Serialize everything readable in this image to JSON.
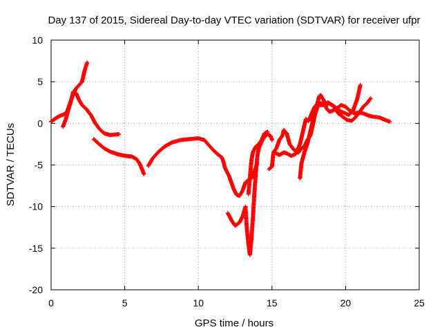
{
  "chart_data": {
    "type": "scatter",
    "title": "Day 137 of 2015, Sidereal Day-to-day VTEC variation (SDTVAR) for receiver ufpr",
    "xlabel": "GPS time / hours",
    "ylabel": "SDTVAR / TECUs",
    "xlim": [
      0,
      25
    ],
    "ylim": [
      -20,
      10
    ],
    "xticks": [
      0,
      5,
      10,
      15,
      20,
      25
    ],
    "yticks": [
      -20,
      -15,
      -10,
      -5,
      0,
      5,
      10
    ],
    "grid": true,
    "legend": "none",
    "marker": "plus",
    "color": "#ff0000",
    "series": [
      {
        "values": [
          [
            0,
            0.2
          ],
          [
            0.3,
            0.6
          ],
          [
            0.6,
            0.9
          ],
          [
            0.9,
            1.1
          ],
          [
            1.1,
            1.5
          ],
          [
            1.3,
            2.5
          ],
          [
            1.5,
            3.5
          ],
          [
            1.7,
            4.2
          ],
          [
            1.9,
            4.6
          ],
          [
            2.1,
            5.0
          ],
          [
            2.3,
            6.5
          ],
          [
            2.45,
            7.3
          ]
        ]
      },
      {
        "values": [
          [
            0.8,
            -0.4
          ],
          [
            1.0,
            0.5
          ],
          [
            1.2,
            1.8
          ],
          [
            1.4,
            3.0
          ],
          [
            1.5,
            3.8
          ],
          [
            1.7,
            3.6
          ],
          [
            1.9,
            2.8
          ],
          [
            2.1,
            2.2
          ],
          [
            2.4,
            1.7
          ],
          [
            2.7,
            1.0
          ],
          [
            3.0,
            0.0
          ],
          [
            3.3,
            -0.7
          ],
          [
            3.6,
            -1.2
          ],
          [
            4.0,
            -1.4
          ],
          [
            4.6,
            -1.3
          ]
        ]
      },
      {
        "values": [
          [
            2.9,
            -1.9
          ],
          [
            3.2,
            -2.4
          ],
          [
            3.6,
            -3.0
          ],
          [
            4.0,
            -3.4
          ],
          [
            4.5,
            -3.7
          ],
          [
            5.0,
            -3.9
          ],
          [
            5.5,
            -4.0
          ],
          [
            5.8,
            -4.3
          ],
          [
            6.0,
            -4.8
          ],
          [
            6.2,
            -5.6
          ],
          [
            6.3,
            -6.1
          ]
        ]
      },
      {
        "values": [
          [
            6.6,
            -5.1
          ],
          [
            6.9,
            -4.2
          ],
          [
            7.3,
            -3.4
          ],
          [
            7.7,
            -2.8
          ],
          [
            8.2,
            -2.3
          ],
          [
            8.8,
            -2.0
          ],
          [
            9.4,
            -1.9
          ],
          [
            10.0,
            -1.8
          ],
          [
            10.4,
            -2.0
          ],
          [
            10.7,
            -2.6
          ],
          [
            11.0,
            -3.2
          ],
          [
            11.3,
            -3.7
          ],
          [
            11.6,
            -4.1
          ],
          [
            11.7,
            -4.6
          ],
          [
            11.8,
            -5.3
          ],
          [
            12.1,
            -6.4
          ],
          [
            12.4,
            -7.9
          ],
          [
            12.6,
            -8.6
          ],
          [
            12.8,
            -8.7
          ],
          [
            13.0,
            -8.1
          ],
          [
            13.2,
            -7.1
          ],
          [
            13.4,
            -6.8
          ],
          [
            13.6,
            -6.6
          ],
          [
            13.8,
            -5.8
          ],
          [
            14.0,
            -4.8
          ]
        ]
      },
      {
        "values": [
          [
            12.0,
            -10.8
          ],
          [
            12.3,
            -11.8
          ],
          [
            12.5,
            -12.3
          ],
          [
            12.8,
            -11.9
          ],
          [
            13.0,
            -11.2
          ],
          [
            13.2,
            -10.0
          ],
          [
            13.3,
            -12.8
          ],
          [
            13.4,
            -14.5
          ],
          [
            13.5,
            -15.8
          ],
          [
            13.6,
            -14.0
          ],
          [
            13.7,
            -11.5
          ],
          [
            13.8,
            -8.5
          ],
          [
            13.9,
            -6.0
          ],
          [
            14.0,
            -4.0
          ],
          [
            14.1,
            -3.0
          ],
          [
            14.3,
            -2.2
          ],
          [
            14.5,
            -1.6
          ],
          [
            14.7,
            -1.3
          ],
          [
            14.9,
            -1.5
          ],
          [
            15.0,
            -2.0
          ]
        ]
      },
      {
        "values": [
          [
            13.4,
            -8.5
          ],
          [
            13.5,
            -6.5
          ],
          [
            13.6,
            -4.5
          ],
          [
            13.7,
            -3.5
          ],
          [
            13.9,
            -2.8
          ],
          [
            14.1,
            -2.5
          ],
          [
            14.3,
            -2.0
          ],
          [
            14.5,
            -1.2
          ],
          [
            14.7,
            -1.0
          ]
        ]
      },
      {
        "values": [
          [
            14.8,
            -5.5
          ],
          [
            15.0,
            -5.2
          ],
          [
            15.1,
            -3.5
          ],
          [
            15.3,
            -3.0
          ],
          [
            15.5,
            -2.0
          ],
          [
            15.7,
            -1.5
          ],
          [
            15.8,
            -0.8
          ],
          [
            16.0,
            -1.2
          ],
          [
            16.2,
            -2.5
          ],
          [
            16.5,
            -3.2
          ],
          [
            16.8,
            -3.5
          ],
          [
            17.0,
            -3.0
          ],
          [
            17.2,
            -2.8
          ],
          [
            17.4,
            -2.0
          ],
          [
            17.6,
            -1.5
          ],
          [
            17.8,
            0.0
          ],
          [
            18.0,
            1.8
          ],
          [
            18.2,
            3.2
          ],
          [
            18.3,
            3.4
          ],
          [
            18.5,
            2.8
          ],
          [
            18.7,
            1.8
          ],
          [
            18.9,
            1.4
          ],
          [
            19.1,
            1.5
          ],
          [
            19.4,
            1.8
          ],
          [
            19.7,
            1.4
          ],
          [
            20.0,
            1.2
          ],
          [
            20.2,
            1.0
          ],
          [
            20.5,
            1.5
          ],
          [
            20.8,
            3.0
          ],
          [
            21.0,
            4.6
          ]
        ]
      },
      {
        "values": [
          [
            15.2,
            -3.5
          ],
          [
            15.5,
            -3.8
          ],
          [
            15.8,
            -3.5
          ],
          [
            16.0,
            -3.6
          ],
          [
            16.3,
            -3.9
          ],
          [
            16.6,
            -3.7
          ],
          [
            16.9,
            -2.5
          ],
          [
            17.1,
            -1.0
          ],
          [
            17.3,
            0.5
          ],
          [
            17.5,
            0.3
          ],
          [
            17.7,
            1.2
          ],
          [
            17.9,
            2.0
          ],
          [
            18.1,
            2.3
          ],
          [
            18.3,
            2.2
          ],
          [
            18.6,
            2.2
          ],
          [
            18.9,
            2.4
          ],
          [
            19.2,
            2.0
          ],
          [
            19.5,
            1.2
          ],
          [
            19.8,
            0.8
          ],
          [
            20.1,
            0.4
          ],
          [
            20.4,
            0.3
          ],
          [
            20.6,
            0.6
          ],
          [
            20.8,
            1.0
          ],
          [
            21.0,
            1.5
          ],
          [
            21.2,
            2.0
          ],
          [
            21.5,
            2.5
          ],
          [
            21.7,
            3.0
          ]
        ]
      },
      {
        "values": [
          [
            16.9,
            -6.6
          ],
          [
            17.0,
            -4.8
          ],
          [
            17.2,
            -3.5
          ],
          [
            17.4,
            -2.5
          ],
          [
            17.6,
            -1.0
          ],
          [
            17.8,
            0.5
          ],
          [
            18.0,
            1.5
          ],
          [
            18.2,
            2.5
          ],
          [
            18.5,
            2.3
          ],
          [
            18.8,
            2.5
          ],
          [
            19.1,
            2.2
          ],
          [
            19.4,
            1.8
          ],
          [
            19.7,
            2.2
          ],
          [
            20.0,
            2.0
          ],
          [
            20.3,
            1.5
          ],
          [
            20.6,
            1.2
          ],
          [
            20.9,
            1.3
          ],
          [
            21.2,
            1.2
          ],
          [
            21.6,
            0.9
          ],
          [
            21.9,
            0.8
          ],
          [
            22.3,
            0.7
          ],
          [
            22.7,
            0.4
          ],
          [
            23.0,
            0.2
          ]
        ]
      }
    ]
  }
}
